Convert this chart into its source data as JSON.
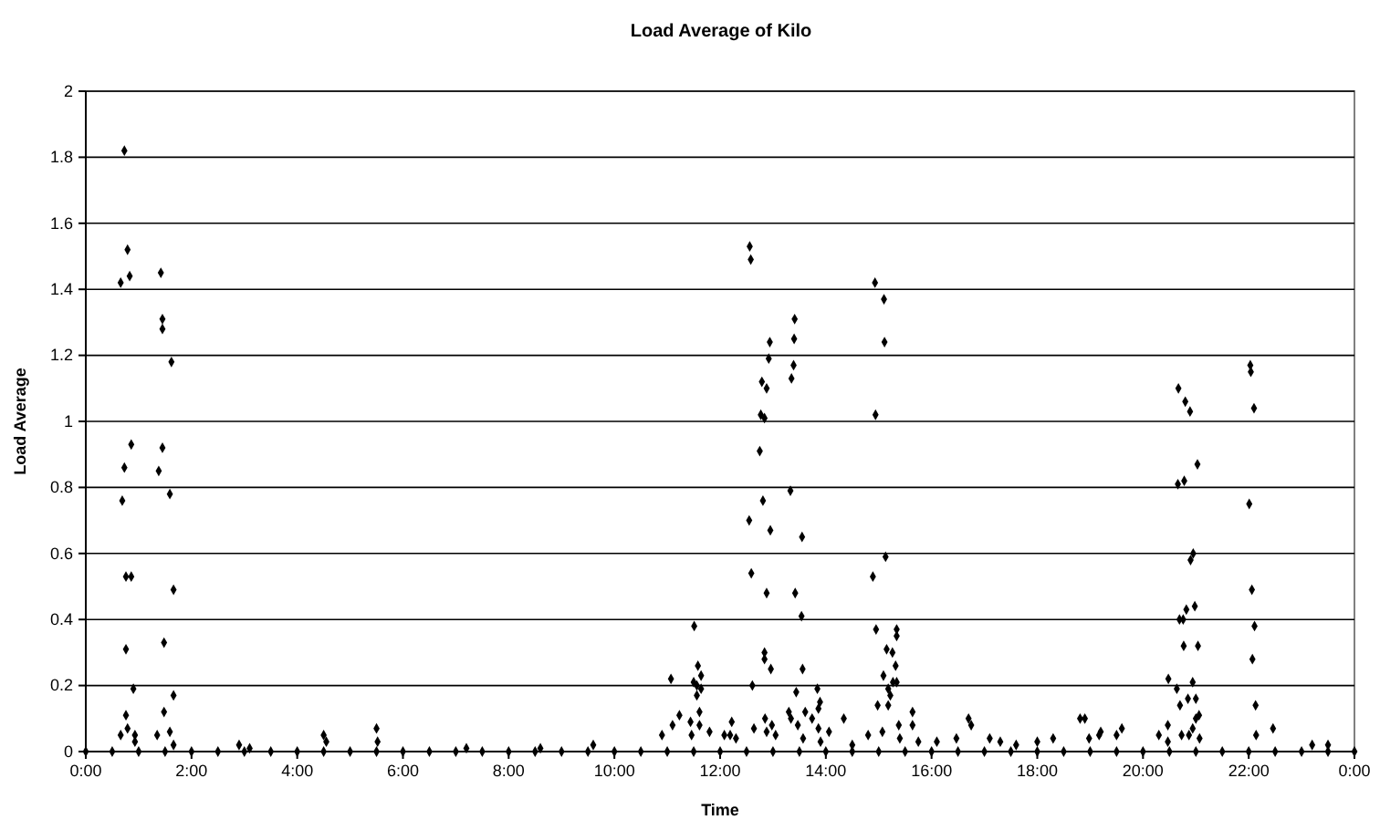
{
  "chart_data": {
    "type": "scatter",
    "title": "Load Average of Kilo",
    "xlabel": "Time",
    "ylabel": "Load Average",
    "xlim": [
      0,
      24
    ],
    "ylim": [
      0,
      2
    ],
    "xticks": [
      {
        "value": 0,
        "label": "0:00"
      },
      {
        "value": 2,
        "label": "2:00"
      },
      {
        "value": 4,
        "label": "4:00"
      },
      {
        "value": 6,
        "label": "6:00"
      },
      {
        "value": 8,
        "label": "8:00"
      },
      {
        "value": 10,
        "label": "10:00"
      },
      {
        "value": 12,
        "label": "12:00"
      },
      {
        "value": 14,
        "label": "14:00"
      },
      {
        "value": 16,
        "label": "16:00"
      },
      {
        "value": 18,
        "label": "18:00"
      },
      {
        "value": 20,
        "label": "20:00"
      },
      {
        "value": 22,
        "label": "22:00"
      },
      {
        "value": 24,
        "label": "0:00"
      }
    ],
    "yticks": [
      0,
      0.2,
      0.4,
      0.6,
      0.8,
      1,
      1.2,
      1.4,
      1.6,
      1.8,
      2
    ],
    "grid": "y",
    "marker": "diamond",
    "series": [
      {
        "color": "#000000",
        "x": [
          0.73,
          0.79,
          0.66,
          0.83,
          1.42,
          1.45,
          1.45,
          1.62,
          0.86,
          1.45,
          0.73,
          1.38,
          0.69,
          1.59,
          0.76,
          0.86,
          1.66,
          0.76,
          1.48,
          0.9,
          1.66,
          1.48,
          0.76,
          0.79,
          0.93,
          0.66,
          1.35,
          1.59,
          0.93,
          1.66,
          12.56,
          12.58,
          13.41,
          12.94,
          13.4,
          12.92,
          13.39,
          13.35,
          12.79,
          12.88,
          12.77,
          12.84,
          12.75,
          13.33,
          12.81,
          12.55,
          12.95,
          13.55,
          12.59,
          12.88,
          13.42,
          13.54,
          11.51,
          12.84,
          12.84,
          12.96,
          13.56,
          11.58,
          11.07,
          11.5,
          11.64,
          11.56,
          11.64,
          11.56,
          12.61,
          13.44,
          13.84,
          13.89,
          13.86,
          11.61,
          11.23,
          13.3,
          13.61,
          12.85,
          13.34,
          13.74,
          14.34,
          12.22,
          11.44,
          11.1,
          11.61,
          12.98,
          13.47,
          12.64,
          13.86,
          14.06,
          12.88,
          13.05,
          13.57,
          11.46,
          12.08,
          12.19,
          14.93,
          15.1,
          15.11,
          14.94,
          15.13,
          14.89,
          14.95,
          15.34,
          15.34,
          15.15,
          15.26,
          15.32,
          15.09,
          15.34,
          15.27,
          15.18,
          15.22,
          15.18,
          14.98,
          15.64,
          15.38,
          15.64,
          14.8,
          15.07,
          15.4,
          15.75,
          16.47,
          22.03,
          22.04,
          22.1,
          20.67,
          20.8,
          20.89,
          21.03,
          20.78,
          20.66,
          22.01,
          20.95,
          20.9,
          22.06,
          20.98,
          20.82,
          20.69,
          20.76,
          22.11,
          20.77,
          21.04,
          22.07,
          20.48,
          20.94,
          20.64,
          20.85,
          21.0,
          20.7,
          22.13,
          21.06,
          21.0,
          18.81,
          20.47,
          20.94,
          19.6,
          22.46,
          20.73,
          20.87,
          22.14,
          21.07,
          20.47,
          19.17,
          19.5,
          18.98,
          4.5,
          4.55,
          5.5,
          5.52,
          3.1,
          2.9,
          9.6,
          16.7,
          16.75,
          18.9,
          17.3,
          17.6,
          18.0,
          18.3,
          19.2,
          20.3,
          23.2,
          23.5,
          7.2,
          8.6,
          10.9,
          11.8,
          12.3,
          13.9,
          14.5,
          16.1,
          17.1,
          0,
          0.5,
          1,
          1.5,
          2,
          2.5,
          3,
          3.5,
          4,
          4.5,
          5,
          5.5,
          6,
          6.5,
          7,
          7.5,
          8,
          8.5,
          9,
          9.5,
          10,
          10.5,
          11,
          11.5,
          12,
          12.5,
          13,
          13.5,
          14,
          14.5,
          15,
          15.5,
          16,
          16.5,
          17,
          17.5,
          18,
          18.5,
          19,
          19.5,
          20,
          20.5,
          21,
          21.5,
          22,
          22.5,
          23,
          23.5,
          24
        ],
        "values": [
          1.82,
          1.52,
          1.42,
          1.44,
          1.45,
          1.31,
          1.28,
          1.18,
          0.93,
          0.92,
          0.86,
          0.85,
          0.76,
          0.78,
          0.53,
          0.53,
          0.49,
          0.31,
          0.33,
          0.19,
          0.17,
          0.12,
          0.11,
          0.07,
          0.05,
          0.05,
          0.05,
          0.06,
          0.03,
          0.02,
          1.53,
          1.49,
          1.31,
          1.24,
          1.25,
          1.19,
          1.17,
          1.13,
          1.12,
          1.1,
          1.02,
          1.01,
          0.91,
          0.79,
          0.76,
          0.7,
          0.67,
          0.65,
          0.54,
          0.48,
          0.48,
          0.41,
          0.38,
          0.3,
          0.28,
          0.25,
          0.25,
          0.26,
          0.22,
          0.21,
          0.23,
          0.2,
          0.19,
          0.17,
          0.2,
          0.18,
          0.19,
          0.15,
          0.13,
          0.12,
          0.11,
          0.12,
          0.12,
          0.1,
          0.1,
          0.1,
          0.1,
          0.09,
          0.09,
          0.08,
          0.08,
          0.08,
          0.08,
          0.07,
          0.07,
          0.06,
          0.06,
          0.05,
          0.04,
          0.05,
          0.05,
          0.05,
          1.42,
          1.37,
          1.24,
          1.02,
          0.59,
          0.53,
          0.37,
          0.37,
          0.35,
          0.31,
          0.3,
          0.26,
          0.23,
          0.21,
          0.21,
          0.19,
          0.17,
          0.14,
          0.14,
          0.12,
          0.08,
          0.08,
          0.05,
          0.06,
          0.04,
          0.03,
          0.04,
          1.17,
          1.15,
          1.04,
          1.1,
          1.06,
          1.03,
          0.87,
          0.82,
          0.81,
          0.75,
          0.6,
          0.58,
          0.49,
          0.44,
          0.43,
          0.4,
          0.4,
          0.38,
          0.32,
          0.32,
          0.28,
          0.22,
          0.21,
          0.19,
          0.16,
          0.16,
          0.14,
          0.14,
          0.11,
          0.1,
          0.1,
          0.08,
          0.07,
          0.07,
          0.07,
          0.05,
          0.05,
          0.05,
          0.04,
          0.03,
          0.05,
          0.05,
          0.04,
          0.05,
          0.03,
          0.07,
          0.03,
          0.01,
          0.02,
          0.02,
          0.1,
          0.08,
          0.1,
          0.03,
          0.02,
          0.03,
          0.04,
          0.06,
          0.05,
          0.02,
          0.02,
          0.01,
          0.01,
          0.05,
          0.06,
          0.04,
          0.03,
          0.02,
          0.03,
          0.04,
          0,
          0,
          0,
          0,
          0,
          0,
          0,
          0,
          0,
          0,
          0,
          0,
          0,
          0,
          0,
          0,
          0,
          0,
          0,
          0,
          0,
          0,
          0,
          0,
          0,
          0,
          0,
          0,
          0,
          0,
          0,
          0,
          0,
          0,
          0,
          0,
          0,
          0,
          0,
          0,
          0,
          0,
          0,
          0,
          0,
          0,
          0,
          0,
          0
        ]
      }
    ]
  }
}
